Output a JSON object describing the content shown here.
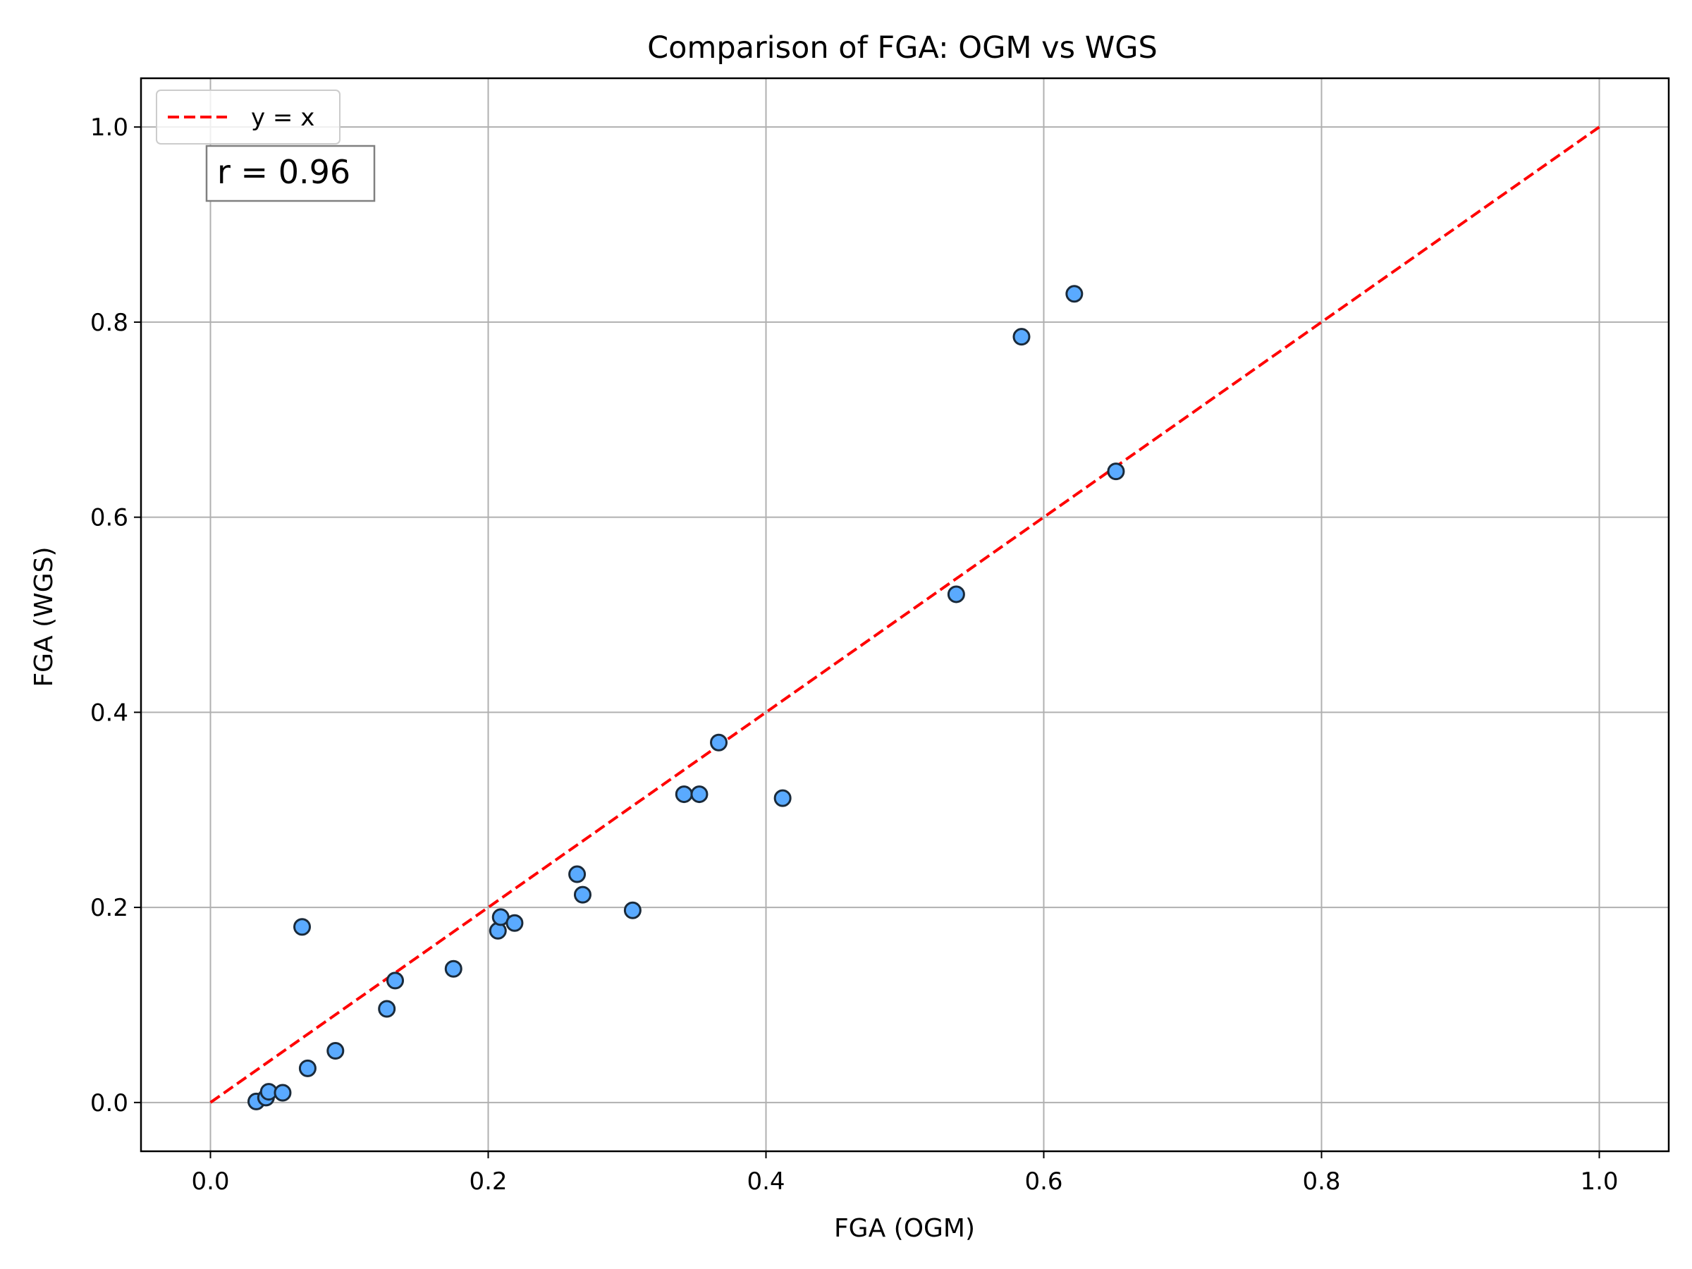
{
  "chart_data": {
    "type": "scatter",
    "title": "Comparison of FGA: OGM vs WGS",
    "xlabel": "FGA (OGM)",
    "ylabel": "FGA (WGS)",
    "xlim": [
      -0.05,
      1.05
    ],
    "ylim": [
      -0.05,
      1.05
    ],
    "xticks": [
      0.0,
      0.2,
      0.4,
      0.6,
      0.8,
      1.0
    ],
    "yticks": [
      0.0,
      0.2,
      0.4,
      0.6,
      0.8,
      1.0
    ],
    "xtick_labels": [
      "0.0",
      "0.2",
      "0.4",
      "0.6",
      "0.8",
      "1.0"
    ],
    "ytick_labels": [
      "0.0",
      "0.2",
      "0.4",
      "0.6",
      "0.8",
      "1.0"
    ],
    "grid": true,
    "legend": {
      "position": "top-left",
      "entries": [
        "y = x"
      ]
    },
    "annotation": "r = 0.96",
    "reference_line": {
      "name": "y = x",
      "from": [
        0,
        0
      ],
      "to": [
        1,
        1
      ],
      "color": "#ff0000",
      "style": "dashed"
    },
    "marker_color": "#5aaaff",
    "marker_edge_color": "#1a2a3a",
    "points": [
      {
        "x": 0.033,
        "y": 0.001
      },
      {
        "x": 0.04,
        "y": 0.005
      },
      {
        "x": 0.042,
        "y": 0.011
      },
      {
        "x": 0.052,
        "y": 0.01
      },
      {
        "x": 0.066,
        "y": 0.18
      },
      {
        "x": 0.07,
        "y": 0.035
      },
      {
        "x": 0.09,
        "y": 0.053
      },
      {
        "x": 0.127,
        "y": 0.096
      },
      {
        "x": 0.133,
        "y": 0.125
      },
      {
        "x": 0.175,
        "y": 0.137
      },
      {
        "x": 0.207,
        "y": 0.176
      },
      {
        "x": 0.209,
        "y": 0.19
      },
      {
        "x": 0.219,
        "y": 0.184
      },
      {
        "x": 0.264,
        "y": 0.234
      },
      {
        "x": 0.268,
        "y": 0.213
      },
      {
        "x": 0.304,
        "y": 0.197
      },
      {
        "x": 0.341,
        "y": 0.316
      },
      {
        "x": 0.352,
        "y": 0.316
      },
      {
        "x": 0.366,
        "y": 0.369
      },
      {
        "x": 0.412,
        "y": 0.312
      },
      {
        "x": 0.537,
        "y": 0.521
      },
      {
        "x": 0.584,
        "y": 0.785
      },
      {
        "x": 0.622,
        "y": 0.829
      },
      {
        "x": 0.652,
        "y": 0.647
      }
    ]
  }
}
